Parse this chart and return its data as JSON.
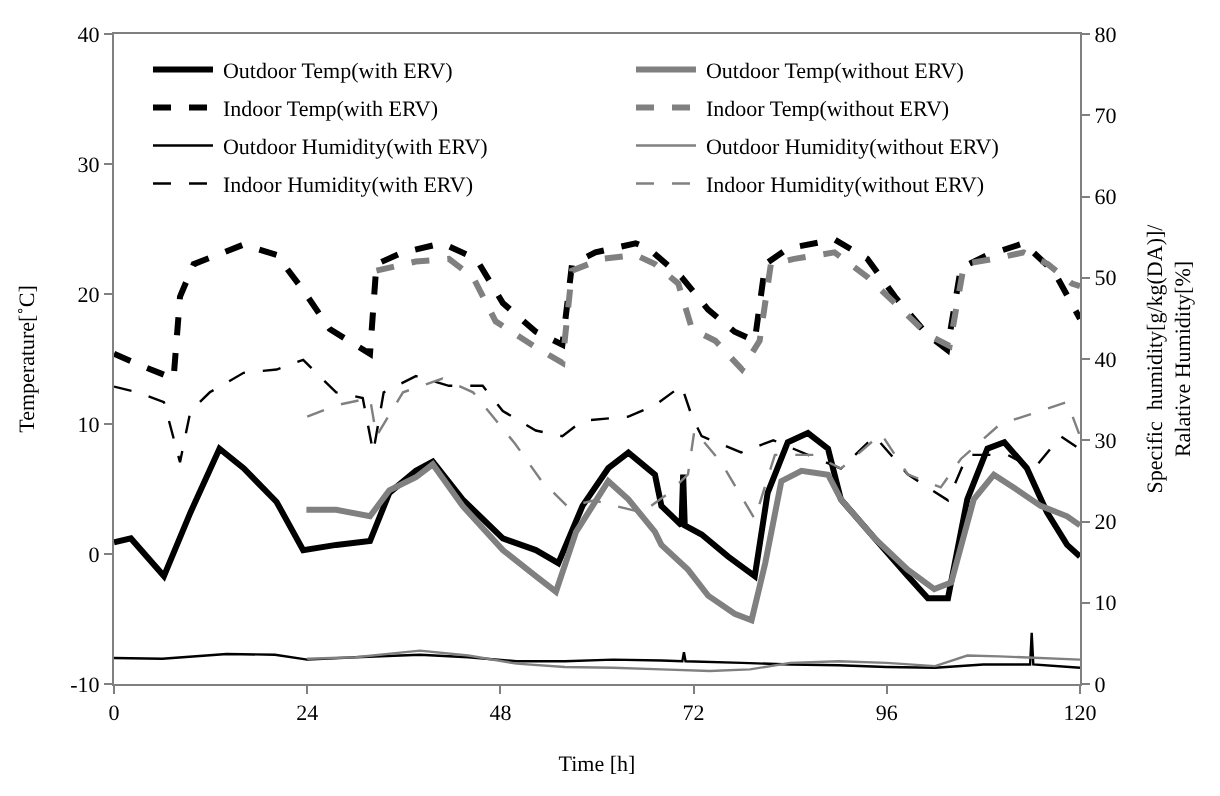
{
  "chart_data": {
    "type": "line",
    "xlabel": "Time [h]",
    "ylabel": "Temperature[˚C]",
    "y2label": "Specific  humidity[g/kg(DA)]/\nRalative Humidity[%]",
    "xlim": [
      0,
      120
    ],
    "xticks": [
      0,
      24,
      48,
      72,
      96,
      120
    ],
    "ylim": [
      -10,
      40
    ],
    "yticks": [
      -10,
      0,
      10,
      20,
      30,
      40
    ],
    "y2lim": [
      0,
      80
    ],
    "y2ticks": [
      0,
      10,
      20,
      30,
      40,
      50,
      60,
      70,
      80
    ],
    "legend": "top",
    "marker": "none",
    "series": [
      {
        "name": "Outdoor Temp(with ERV)",
        "color": "#000000",
        "line_style": "solid",
        "x": [
          0,
          2.1,
          6.2,
          9.5,
          13.1,
          16.1,
          20.2,
          23.5,
          27.6,
          31.8,
          34.2,
          37.5,
          39.6,
          43.3,
          48.3,
          52.4,
          55.2,
          58.2,
          61.4,
          63.9,
          67.2,
          68,
          70.5,
          70.7,
          70.9,
          73,
          76.3,
          79.6,
          81.2,
          83.7,
          86.2,
          88.7,
          90.3,
          94.5,
          98.6,
          101.1,
          103.6,
          106,
          108.5,
          110.6,
          113.4,
          115.9,
          118.4,
          120
        ],
        "values": [
          0.9,
          1.2,
          -1.7,
          3.2,
          8.1,
          6.6,
          4,
          0.3,
          0.7,
          1,
          4.7,
          6.4,
          7.1,
          4.2,
          1.2,
          0.3,
          -0.7,
          3.7,
          6.6,
          7.8,
          6.1,
          3.7,
          2.2,
          6.1,
          2.2,
          1.5,
          -0.2,
          -1.7,
          4.7,
          8.6,
          9.3,
          8.1,
          4.2,
          1.2,
          -1.7,
          -3.4,
          -3.4,
          4.2,
          8.1,
          8.6,
          6.6,
          3.2,
          0.7,
          -0.2
        ]
      },
      {
        "name": "Outdoor Temp(without ERV)",
        "color": "#808080",
        "line_style": "solid",
        "x": [
          23.9,
          27.6,
          31.8,
          34.2,
          37.5,
          39.6,
          43.3,
          48.3,
          52.4,
          54.9,
          57.4,
          61.4,
          63.9,
          67.2,
          68,
          71.3,
          73.8,
          77.1,
          79.2,
          80.9,
          82.9,
          85.4,
          88.7,
          90.3,
          94.5,
          98.6,
          101.9,
          104,
          106.8,
          109.3,
          111.8,
          115.1,
          118.4,
          120
        ],
        "values": [
          3.4,
          3.4,
          2.9,
          4.9,
          5.9,
          6.9,
          3.7,
          0.3,
          -1.7,
          -2.9,
          1.7,
          5.6,
          4.2,
          1.7,
          0.7,
          -1.2,
          -3.2,
          -4.6,
          -5.1,
          -0.7,
          5.6,
          6.4,
          6.1,
          4.2,
          1.2,
          -1.2,
          -2.7,
          -2.2,
          4.2,
          6.1,
          5.1,
          3.7,
          2.9,
          2.2
        ]
      },
      {
        "name": "Indoor Temp(with ERV)",
        "color": "#000000",
        "line_style": "dashed",
        "x": [
          0,
          3.7,
          7.4,
          8.2,
          9.9,
          12.8,
          16.1,
          20.2,
          23.5,
          26.8,
          31.8,
          32.6,
          35.9,
          40.8,
          45,
          48.3,
          52.4,
          55.7,
          56.9,
          59.8,
          64.8,
          66.4,
          70.5,
          73.8,
          77.1,
          79.6,
          80.9,
          83.7,
          89.5,
          93.6,
          97,
          101,
          103.5,
          105.2,
          108.5,
          113,
          116.8,
          120
        ],
        "values": [
          15.4,
          14.4,
          13.5,
          19.8,
          22.3,
          23,
          23.8,
          23,
          20.3,
          17.3,
          15.4,
          22.3,
          23.2,
          23.9,
          22.7,
          19.3,
          17.1,
          16.1,
          22.3,
          23.2,
          23.9,
          23.5,
          21.3,
          18.8,
          17.1,
          16.4,
          22.3,
          23.5,
          24.2,
          22.7,
          19.8,
          16.9,
          15.7,
          22,
          23,
          23.9,
          21.7,
          18.1
        ]
      },
      {
        "name": "Indoor Temp(without ERV)",
        "color": "#808080",
        "line_style": "dashed",
        "x": [
          32.6,
          37.5,
          41.6,
          44.6,
          47.4,
          52.4,
          55.7,
          56.9,
          60.6,
          64.8,
          67.2,
          70.1,
          71.8,
          74.7,
          78,
          80.2,
          81.6,
          84.5,
          89.5,
          93.6,
          97,
          101,
          103.8,
          105.6,
          109.3,
          113,
          116,
          119,
          120
        ],
        "values": [
          21.8,
          22.5,
          22.7,
          21.3,
          17.9,
          15.9,
          14.7,
          21.8,
          22.7,
          23,
          22.3,
          20.8,
          17.3,
          16.4,
          14.2,
          16.4,
          22.3,
          22.7,
          23.2,
          21.3,
          19.3,
          16.9,
          16,
          22.3,
          22.7,
          23.2,
          22.3,
          20.8,
          20.6
        ]
      },
      {
        "name": "Outdoor Humidity(with ERV)",
        "color": "#000000",
        "line_style": "solid",
        "axis": "y2",
        "x": [
          0,
          6,
          14,
          20,
          24,
          30,
          38,
          44,
          50,
          56,
          62,
          68,
          70.6,
          70.8,
          71,
          78,
          84,
          90,
          96,
          102,
          108,
          113.8,
          114,
          114.2,
          120
        ],
        "values": [
          3.2,
          3.1,
          3.7,
          3.6,
          3,
          3.3,
          3.6,
          3.3,
          2.8,
          2.8,
          3,
          2.9,
          2.8,
          3.9,
          2.8,
          2.6,
          2.4,
          2.3,
          2.1,
          2,
          2.4,
          2.4,
          6.3,
          2.4,
          2
        ]
      },
      {
        "name": "Outdoor Humidity(without ERV)",
        "color": "#808080",
        "line_style": "solid",
        "axis": "y2",
        "x": [
          24,
          30,
          38,
          44,
          50,
          56,
          62,
          68,
          74,
          79,
          84,
          90,
          96,
          102,
          106,
          110,
          120
        ],
        "values": [
          3.1,
          3.3,
          4.1,
          3.5,
          2.5,
          2.1,
          2,
          1.8,
          1.6,
          1.8,
          2.6,
          2.8,
          2.6,
          2.2,
          3.5,
          3.4,
          3
        ]
      },
      {
        "name": "Indoor Humidity(with ERV)",
        "color": "#000000",
        "line_style": "dashed",
        "axis": "y2",
        "x": [
          0,
          2.9,
          6.2,
          8.2,
          9.5,
          11.9,
          16.1,
          20.2,
          23.5,
          25.1,
          27.6,
          30.9,
          32.2,
          33.5,
          37.5,
          41.6,
          45.8,
          48.3,
          52.4,
          55.7,
          58.2,
          63.9,
          67.2,
          70.5,
          71.8,
          73,
          77.9,
          81.9,
          86.2,
          90.3,
          94.5,
          98.6,
          103.6,
          106,
          111,
          114.3,
          117.6,
          120
        ],
        "values": [
          36.6,
          35.9,
          34.7,
          27.3,
          33.6,
          35.9,
          38.3,
          38.7,
          39.9,
          38.3,
          35.9,
          35.2,
          28.5,
          35.9,
          37.9,
          36.7,
          36.7,
          33.6,
          31.2,
          30.5,
          32.4,
          32.9,
          34.3,
          36.7,
          32.9,
          30.5,
          28.5,
          30,
          28.2,
          26.5,
          30.5,
          25.8,
          22.6,
          28.2,
          28.2,
          26.5,
          30.5,
          28.9
        ]
      },
      {
        "name": "Indoor Humidity(without ERV)",
        "color": "#808080",
        "line_style": "dashed",
        "axis": "y2",
        "x": [
          24,
          27.6,
          31.8,
          32.6,
          35.9,
          40.8,
          44.6,
          49.8,
          53.1,
          56.4,
          59.6,
          65.6,
          68.9,
          71.3,
          72.1,
          75.4,
          79.6,
          82.1,
          87,
          90.3,
          95.3,
          98.6,
          102.7,
          105.2,
          110.1,
          115.1,
          118.4,
          120
        ],
        "values": [
          32.9,
          34.3,
          35.2,
          30.5,
          35.9,
          37.6,
          35.9,
          29.6,
          25,
          21.8,
          22.6,
          21.1,
          23.5,
          25.8,
          31.2,
          27.3,
          20.3,
          28.2,
          28.2,
          26.5,
          30.8,
          25.8,
          24.2,
          27.7,
          32,
          33.6,
          34.7,
          30.5
        ]
      }
    ]
  }
}
